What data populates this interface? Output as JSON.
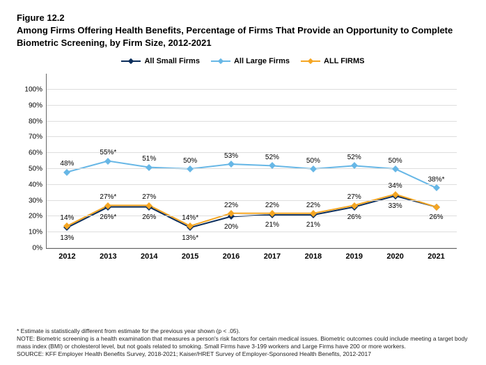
{
  "figure_number": "Figure 12.2",
  "title": "Among Firms Offering Health Benefits, Percentage of Firms That Provide an Opportunity to Complete Biometric Screening, by Firm Size, 2012-2021",
  "chart": {
    "type": "line",
    "background_color": "#ffffff",
    "grid_color": "#dddddd",
    "axis_color": "#666666",
    "ylim": [
      0,
      110
    ],
    "ytick_step": 10,
    "ytick_max_label": 100,
    "x_categories": [
      "2012",
      "2013",
      "2014",
      "2015",
      "2016",
      "2017",
      "2018",
      "2019",
      "2020",
      "2021"
    ],
    "label_fontsize": 10,
    "series": [
      {
        "name": "All Small Firms",
        "color": "#0b2d5b",
        "marker": "diamond",
        "line_width": 2,
        "values": [
          13,
          26,
          26,
          13,
          20,
          21,
          21,
          26,
          33,
          26
        ],
        "labels": [
          "13%",
          "26%*",
          "26%",
          "13%*",
          "20%",
          "21%",
          "21%",
          "26%",
          "33%",
          "26%"
        ],
        "label_pos": [
          "below",
          "below",
          "below",
          "below",
          "below",
          "below",
          "below",
          "below",
          "below",
          "below"
        ]
      },
      {
        "name": "All Large Firms",
        "color": "#67b7e6",
        "marker": "diamond",
        "line_width": 2,
        "values": [
          48,
          55,
          51,
          50,
          53,
          52,
          50,
          52,
          50,
          38
        ],
        "labels": [
          "48%",
          "55%*",
          "51%",
          "50%",
          "53%",
          "52%",
          "50%",
          "52%",
          "50%",
          "38%*"
        ],
        "label_pos": [
          "above",
          "above",
          "above",
          "above",
          "above",
          "above",
          "above",
          "above",
          "above",
          "above"
        ]
      },
      {
        "name": "ALL FIRMS",
        "color": "#f5a623",
        "marker": "diamond",
        "line_width": 2,
        "values": [
          14,
          27,
          27,
          14,
          22,
          22,
          22,
          27,
          34,
          26
        ],
        "labels": [
          "14%",
          "27%*",
          "27%",
          "14%*",
          "22%",
          "22%",
          "22%",
          "27%",
          "34%",
          "26%"
        ],
        "label_pos": [
          "above",
          "above",
          "above",
          "above",
          "above",
          "above",
          "above",
          "above",
          "above",
          "hidden"
        ]
      }
    ]
  },
  "footnote_star": "* Estimate is statistically different from estimate for the previous year shown (p < .05).",
  "footnote_note": "NOTE: Biometric screening is a health examination that measures a person's risk factors for certain medical issues. Biometric outcomes could include meeting a target body mass index (BMI) or cholesterol level, but not goals related to smoking. Small Firms have 3-199 workers and Large Firms have 200 or more workers.",
  "footnote_source": "SOURCE: KFF Employer Health Benefits Survey, 2018-2021; Kaiser/HRET Survey of Employer-Sponsored Health Benefits, 2012-2017"
}
